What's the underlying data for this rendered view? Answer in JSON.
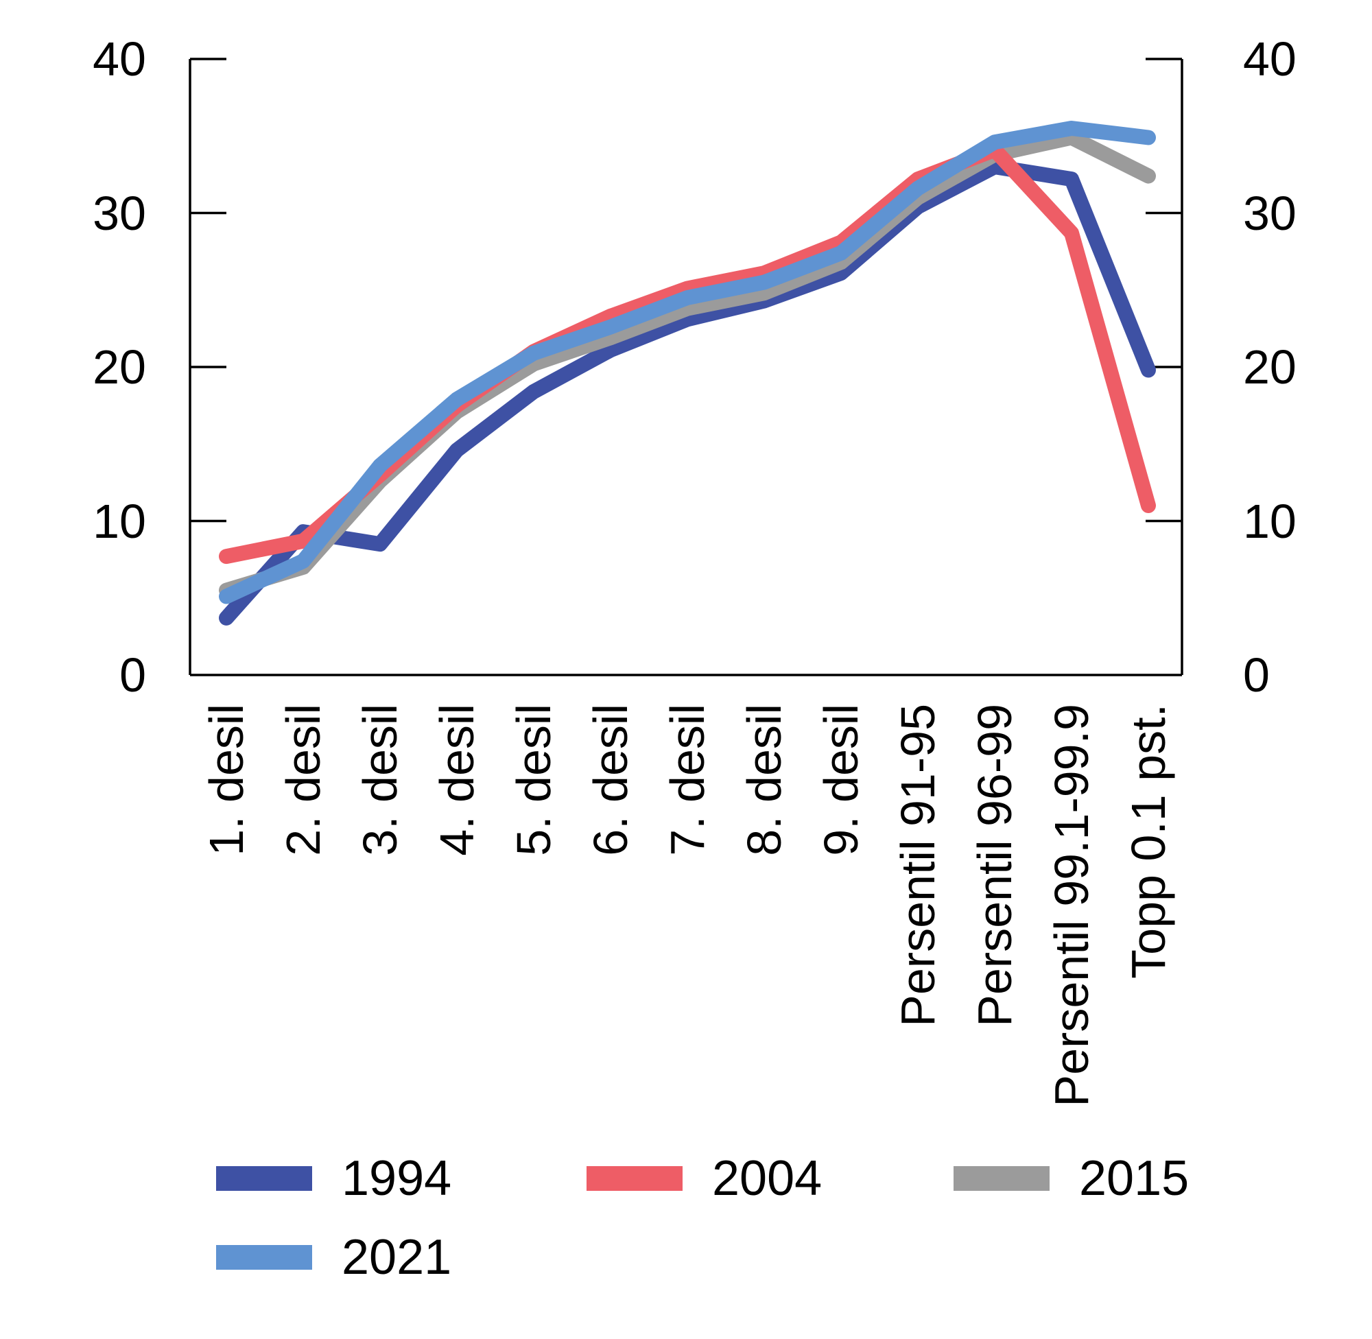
{
  "chart_data": {
    "type": "line",
    "title": "",
    "categories": [
      "1. desil",
      "2. desil",
      "3. desil",
      "4. desil",
      "5. desil",
      "6. desil",
      "7. desil",
      "8. desil",
      "9. desil",
      "Persentil 91-95",
      "Persentil 96-99",
      "Persentil 99.1-99.9",
      "Topp 0.1 pst."
    ],
    "series": [
      {
        "name": "1994",
        "color": "#3E51A4",
        "values": [
          3.7,
          9.3,
          8.5,
          14.6,
          18.4,
          21.1,
          23.1,
          24.3,
          26.1,
          30.4,
          33.0,
          32.2,
          19.8
        ]
      },
      {
        "name": "2004",
        "color": "#EE5D66",
        "values": [
          7.7,
          8.7,
          13.0,
          17.5,
          21.0,
          23.3,
          25.1,
          26.1,
          28.1,
          32.2,
          34.1,
          28.7,
          11.0
        ]
      },
      {
        "name": "2015",
        "color": "#9B9B9B",
        "values": [
          5.5,
          7.0,
          12.6,
          17.1,
          20.2,
          21.9,
          23.8,
          24.8,
          26.8,
          31.0,
          33.8,
          34.9,
          32.4
        ]
      },
      {
        "name": "2021",
        "color": "#5F93D2",
        "values": [
          5.1,
          7.4,
          13.6,
          17.9,
          20.9,
          22.6,
          24.5,
          25.5,
          27.4,
          31.6,
          34.6,
          35.5,
          34.9
        ]
      }
    ],
    "yticks": [
      0,
      10,
      20,
      30,
      40
    ],
    "ylim": [
      0,
      40
    ],
    "xlabel": "",
    "ylabel": "",
    "grid": false,
    "y_axis_sides": [
      "left",
      "right"
    ],
    "axis_color": "#000000",
    "legend_position": "bottom-left"
  }
}
